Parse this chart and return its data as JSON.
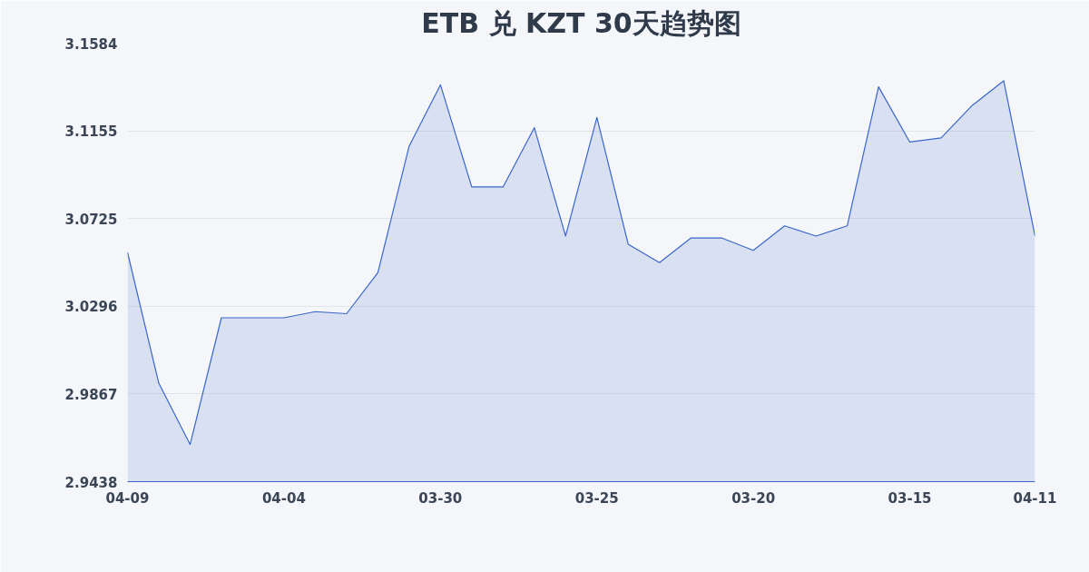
{
  "chart_data": {
    "type": "area",
    "title": "ETB 兑 KZT 30天趋势图",
    "categories": [
      "04-09",
      null,
      null,
      null,
      null,
      "04-04",
      null,
      null,
      null,
      null,
      "03-30",
      null,
      null,
      null,
      null,
      "03-25",
      null,
      null,
      null,
      null,
      "03-20",
      null,
      null,
      null,
      null,
      "03-15",
      null,
      null,
      null,
      "04-11"
    ],
    "series": [
      {
        "color": "#3a66c9",
        "values": [
          3.056,
          2.992,
          2.962,
          3.024,
          3.024,
          3.024,
          3.027,
          3.026,
          3.046,
          3.108,
          3.138,
          3.088,
          3.088,
          3.117,
          3.064,
          3.122,
          3.06,
          3.051,
          3.063,
          3.063,
          3.057,
          3.069,
          3.064,
          3.069,
          3.137,
          3.11,
          3.112,
          3.128,
          3.14,
          3.064
        ]
      }
    ],
    "ylim": [
      2.9438,
      3.1584
    ],
    "yticks": [
      2.9438,
      2.9867,
      3.0296,
      3.0725,
      3.1155,
      3.1584
    ],
    "grid": "y",
    "marker": "none",
    "line_style": "solid"
  }
}
